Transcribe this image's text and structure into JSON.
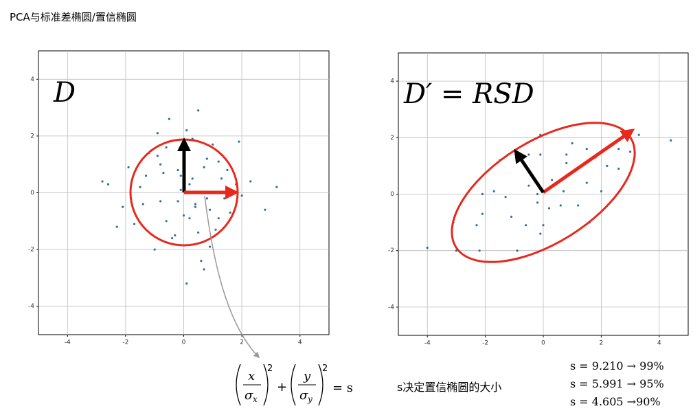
{
  "title": "PCA与标准差椭圆/置信椭圆",
  "chart_data": [
    {
      "type": "scatter",
      "label": "D",
      "color": "#3b6e8f",
      "grid": true,
      "xlim": [
        -5,
        5
      ],
      "ylim": [
        -5,
        5
      ],
      "xticks": [
        -4,
        -2,
        0,
        2,
        4
      ],
      "yticks": [
        -4,
        -2,
        0,
        2,
        4
      ],
      "x": [
        0.3,
        -0.8,
        1.2,
        -1.5,
        0.5,
        -0.2,
        0.9,
        -1.1,
        1.8,
        -0.6,
        0.1,
        -2.1,
        0.7,
        -0.4,
        1.4,
        -1.3,
        0.2,
        2.3,
        -0.9,
        0.6,
        -0.1,
        1.0,
        -1.7,
        0.4,
        -0.5,
        1.6,
        -2.6,
        0.8,
        -0.3,
        1.1,
        -0.7,
        2.0,
        -1.9,
        0.0,
        0.3,
        -1.0,
        1.3,
        -0.2,
        0.5,
        2.8,
        -0.8,
        0.9,
        -1.4,
        0.2,
        -0.6,
        1.5,
        -2.3,
        0.7,
        -0.1,
        1.2,
        -1.2,
        0.4,
        3.2,
        -0.4,
        0.6,
        -2.8,
        1.9,
        -0.9,
        0.1,
        0.8
      ],
      "y": [
        0.5,
        -0.3,
        1.1,
        0.2,
        -1.4,
        0.8,
        -0.6,
        1.5,
        0.3,
        -1.0,
        2.2,
        -0.5,
        0.9,
        -1.8,
        -0.2,
        0.6,
        -0.9,
        0.4,
        1.3,
        -2.4,
        0.1,
        1.7,
        -1.1,
        -0.4,
        2.6,
        -0.7,
        0.3,
        1.2,
        -1.5,
        -1.3,
        0.7,
        -0.1,
        0.9,
        -0.8,
        1.9,
        -2.0,
        0.5,
        -0.3,
        2.9,
        -0.6,
        1.0,
        -1.9,
        -0.4,
        0.3,
        1.6,
        0.8,
        -1.2,
        -2.7,
        0.6,
        -0.9,
        1.4,
        -0.5,
        0.2,
        -1.6,
        0.0,
        0.4,
        1.8,
        2.1,
        -3.2,
        -0.2
      ]
    },
    {
      "type": "scatter",
      "label": "D′ = RSD",
      "color": "#3b6e8f",
      "grid": true,
      "xlim": [
        -5,
        5
      ],
      "ylim": [
        -5,
        5
      ],
      "xticks": [
        -4,
        -2,
        0,
        2,
        4
      ],
      "yticks": [
        -4,
        -2,
        0,
        2,
        4
      ],
      "x": [
        0.3,
        -1.1,
        1.5,
        -2.3,
        1.2,
        -0.5,
        1.5,
        -2.1,
        2.6,
        -0.6,
        -0.5,
        -3.0,
        0.8,
        -0.1,
        2.2,
        -2.1,
        0.6,
        3.3,
        -1.7,
        1.6,
        -0.2,
        1.0,
        -2.2,
        0.7,
        -1.5,
        2.6,
        -4.0,
        0.8,
        0.0,
        2.0,
        -1.3,
        3.0,
        -3.1,
        0.2,
        -0.1,
        -0.9,
        1.8,
        -0.2,
        -0.1,
        4.4
      ],
      "y": [
        0.5,
        -0.8,
        1.6,
        -1.1,
        -0.4,
        0.3,
        0.4,
        0.0,
        1.6,
        -1.1,
        1.4,
        -2.0,
        1.1,
        -1.4,
        1.0,
        -0.7,
        -0.4,
        2.1,
        0.1,
        -1.0,
        0.0,
        1.8,
        -2.0,
        0.1,
        1.2,
        0.9,
        -1.9,
        1.4,
        -1.1,
        0.1,
        -0.1,
        1.5,
        -1.0,
        -0.5,
        1.4,
        -2.0,
        1.3,
        -0.3,
        2.1,
        1.9
      ]
    }
  ],
  "formula": {
    "num1": "x",
    "den1": "σ",
    "sub1": "x",
    "exp1": "2",
    "plus": "+",
    "num2": "y",
    "den2": "σ",
    "sub2": "y",
    "exp2": "2",
    "rhs": "= s"
  },
  "caption": "s决定置信椭圆的大小",
  "notes": [
    "s = 9.210 → 99%",
    "s = 5.991 → 95%",
    "s = 4.605 →90%"
  ]
}
